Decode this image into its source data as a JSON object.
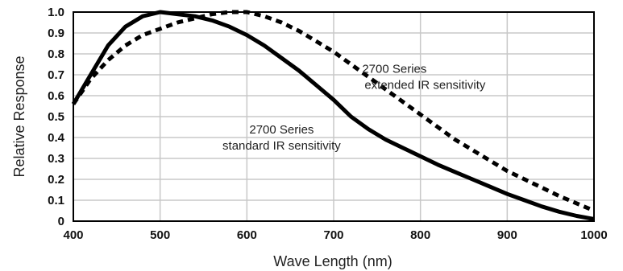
{
  "chart_data": {
    "type": "line",
    "xlabel": "Wave Length (nm)",
    "ylabel": "Relative Response",
    "xlim": [
      400,
      1000
    ],
    "ylim": [
      0,
      1.0
    ],
    "xticks": [
      "400",
      "500",
      "600",
      "700",
      "800",
      "900",
      "1000"
    ],
    "yticks": [
      "0",
      "0.1",
      "0.2",
      "0.3",
      "0.4",
      "0.5",
      "0.6",
      "0.7",
      "0.8",
      "0.9",
      "1.0"
    ],
    "grid": true,
    "series": [
      {
        "style": "solid",
        "color": "#000000",
        "x": [
          400,
          420,
          440,
          460,
          480,
          500,
          520,
          540,
          560,
          580,
          600,
          620,
          640,
          660,
          680,
          700,
          720,
          740,
          760,
          780,
          800,
          820,
          840,
          860,
          880,
          900,
          920,
          940,
          960,
          980,
          1000
        ],
        "y": [
          0.56,
          0.7,
          0.84,
          0.93,
          0.98,
          1.0,
          0.99,
          0.98,
          0.96,
          0.93,
          0.89,
          0.84,
          0.78,
          0.72,
          0.65,
          0.58,
          0.5,
          0.44,
          0.39,
          0.35,
          0.31,
          0.27,
          0.235,
          0.2,
          0.165,
          0.13,
          0.1,
          0.07,
          0.045,
          0.025,
          0.01
        ]
      },
      {
        "style": "dashed",
        "color": "#000000",
        "x": [
          400,
          420,
          440,
          460,
          480,
          500,
          520,
          540,
          560,
          580,
          600,
          620,
          640,
          660,
          680,
          700,
          720,
          740,
          760,
          780,
          800,
          820,
          840,
          860,
          880,
          900,
          920,
          940,
          960,
          980,
          1000
        ],
        "y": [
          0.56,
          0.68,
          0.77,
          0.84,
          0.89,
          0.92,
          0.95,
          0.97,
          0.99,
          1.0,
          1.0,
          0.98,
          0.95,
          0.91,
          0.86,
          0.81,
          0.75,
          0.69,
          0.63,
          0.57,
          0.51,
          0.45,
          0.39,
          0.34,
          0.29,
          0.24,
          0.2,
          0.16,
          0.12,
          0.085,
          0.05
        ]
      }
    ],
    "annotations": [
      {
        "lines": [
          "2700 Series",
          "standard IR sensitivity"
        ],
        "x": 640,
        "y": 0.42
      },
      {
        "lines": [
          "2700 Series",
          "extended IR sensitivity"
        ],
        "x": 770,
        "y": 0.71
      }
    ]
  }
}
